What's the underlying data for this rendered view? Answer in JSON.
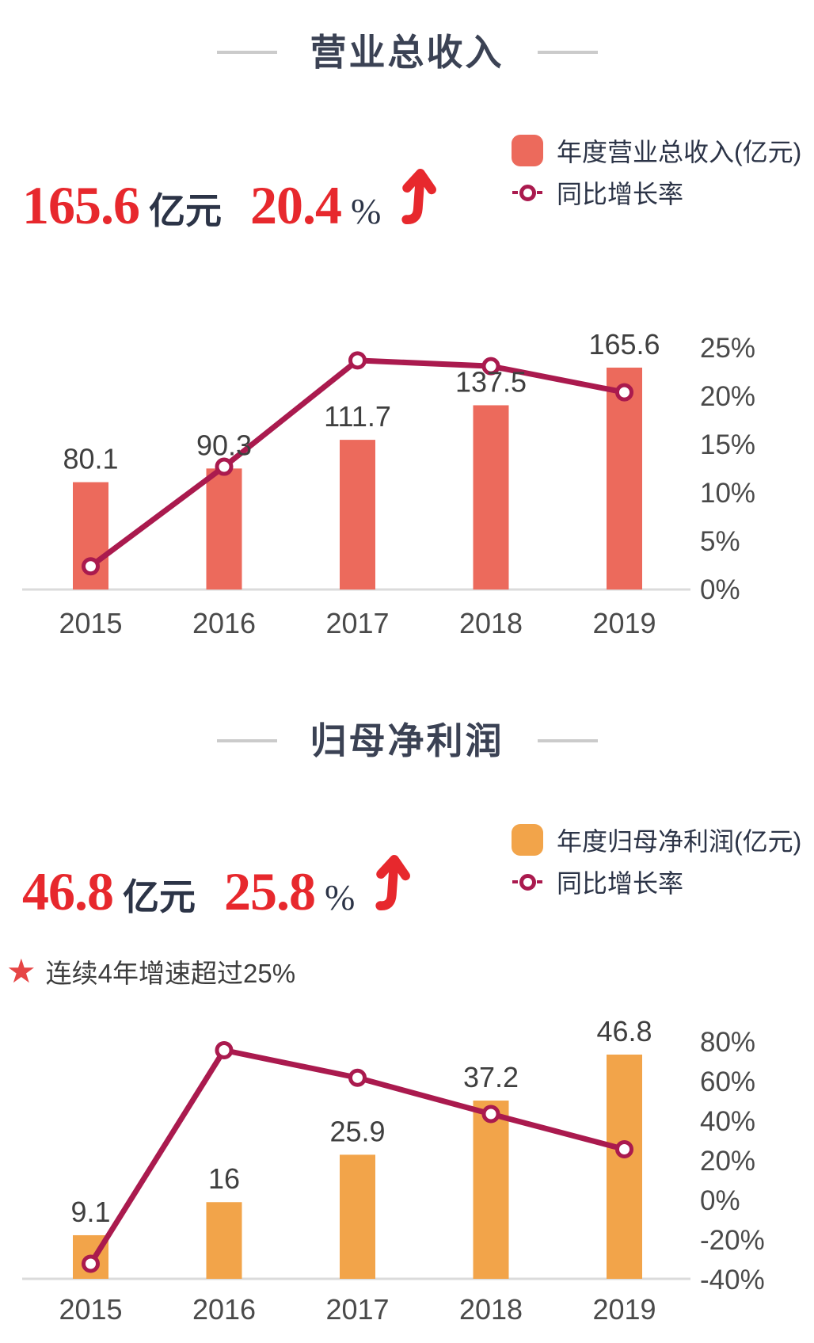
{
  "colors": {
    "red": "#E7282D",
    "navy": "#2C3447",
    "title": "#3B4254",
    "crimson": "#AA1A4E",
    "salmon": "#EC6A5C",
    "orange": "#F2A44A",
    "star": "#E64545",
    "note": "#3C3C3C",
    "axis_label": "#4A4A4A",
    "bar_label": "#3F3F3F",
    "axis_line": "#DBDBDB",
    "dash": "#CBCBCB"
  },
  "section1": {
    "title": "营业总收入",
    "stat": {
      "value": "165.6",
      "unit": "亿元",
      "growth": "20.4",
      "growth_unit": "%"
    },
    "legend": {
      "bar_label": "年度营业总收入(亿元)",
      "line_label": "同比增长率"
    }
  },
  "section2": {
    "title": "归母净利润",
    "stat": {
      "value": "46.8",
      "unit": "亿元",
      "growth": "25.8",
      "growth_unit": "%"
    },
    "note": "连续4年增速超过25%",
    "legend": {
      "bar_label": "年度归母净利润(亿元)",
      "line_label": "同比增长率"
    }
  },
  "chart_data": [
    {
      "type": "bar+line",
      "title": "营业总收入",
      "categories": [
        "2015",
        "2016",
        "2017",
        "2018",
        "2019"
      ],
      "series": [
        {
          "name": "年度营业总收入(亿元)",
          "type": "bar",
          "values": [
            80.1,
            90.3,
            111.7,
            137.5,
            165.6
          ],
          "labels": [
            "80.1",
            "90.3",
            "111.7",
            "137.5",
            "165.6"
          ],
          "color": "#EC6A5C"
        },
        {
          "name": "同比增长率",
          "type": "line",
          "unit": "%",
          "values": [
            2.4,
            12.7,
            23.7,
            23.1,
            20.4
          ],
          "color": "#AA1A4E"
        }
      ],
      "right_axis": {
        "ticks": [
          "25%",
          "20%",
          "15%",
          "10%",
          "5%",
          "0%"
        ],
        "max": 25,
        "min": 0
      },
      "value_unit": "亿元",
      "grid": false,
      "legend_position": "top-right"
    },
    {
      "type": "bar+line",
      "title": "归母净利润",
      "categories": [
        "2015",
        "2016",
        "2017",
        "2018",
        "2019"
      ],
      "series": [
        {
          "name": "年度归母净利润(亿元)",
          "type": "bar",
          "values": [
            9.1,
            16,
            25.9,
            37.2,
            46.8
          ],
          "labels": [
            "9.1",
            "16",
            "25.9",
            "37.2",
            "46.8"
          ],
          "color": "#F2A44A"
        },
        {
          "name": "同比增长率",
          "type": "line",
          "unit": "%",
          "values": [
            -32,
            75.8,
            61.9,
            43.6,
            25.8
          ],
          "color": "#AA1A4E"
        }
      ],
      "right_axis": {
        "ticks": [
          "80%",
          "60%",
          "40%",
          "20%",
          "0%",
          "-20%",
          "-40%"
        ],
        "max": 80,
        "min": -40
      },
      "value_unit": "亿元",
      "grid": false,
      "legend_position": "top-right"
    }
  ]
}
